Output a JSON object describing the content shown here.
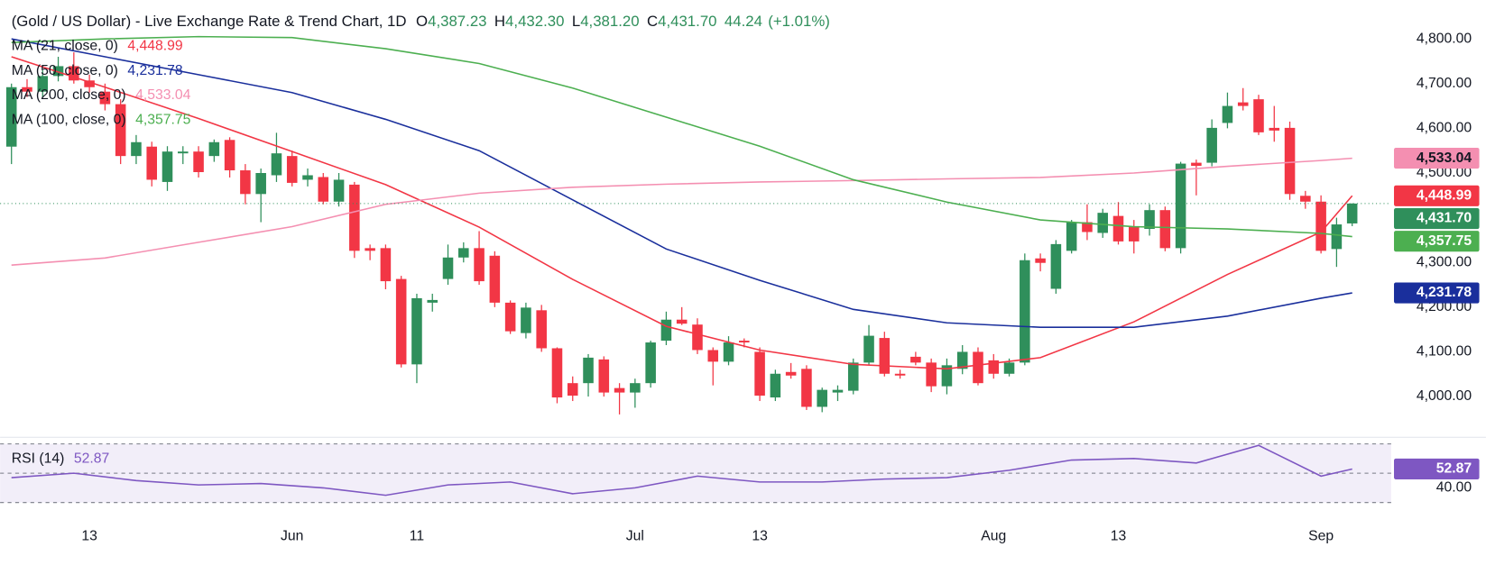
{
  "header": {
    "title": "(Gold / US Dollar) - Live Exchange Rate & Trend Chart, 1D",
    "fields": [
      {
        "label": "O",
        "value": "4,387.23"
      },
      {
        "label": "H",
        "value": "4,432.30"
      },
      {
        "label": "L",
        "value": "4,381.20"
      },
      {
        "label": "C",
        "value": "4,431.70"
      }
    ],
    "change": "44.24",
    "change_pct": "(+1.01%)",
    "color": "#2f8f5b"
  },
  "chart_data": {
    "type": "candlestick",
    "categories": [
      null,
      null,
      null,
      null,
      null,
      "13",
      null,
      null,
      null,
      null,
      null,
      null,
      null,
      null,
      null,
      null,
      null,
      null,
      "Jun",
      null,
      null,
      null,
      null,
      null,
      null,
      null,
      "11",
      null,
      null,
      null,
      null,
      null,
      null,
      null,
      null,
      null,
      null,
      null,
      null,
      null,
      "Jul",
      null,
      null,
      null,
      null,
      null,
      null,
      null,
      "13",
      null,
      null,
      null,
      null,
      null,
      null,
      null,
      null,
      null,
      null,
      null,
      null,
      null,
      null,
      "Aug",
      null,
      null,
      null,
      null,
      null,
      null,
      null,
      "13",
      null,
      null,
      null,
      null,
      null,
      null,
      null,
      null,
      null,
      null,
      null,
      null,
      "Sep",
      null,
      null
    ],
    "xlim": [
      -0.73,
      88.5
    ],
    "ylim": [
      3909,
      4887
    ],
    "yticks": [
      {
        "value": 4000,
        "label": "4,000.00"
      },
      {
        "value": 4100,
        "label": "4,100.00"
      },
      {
        "value": 4200,
        "label": "4,200.00"
      },
      {
        "value": 4300,
        "label": "4,300.00"
      },
      {
        "value": 4400,
        "label": "4,400.00"
      },
      {
        "value": 4500,
        "label": "4,500.00"
      },
      {
        "value": 4600,
        "label": "4,600.00"
      },
      {
        "value": 4700,
        "label": "4,700.00"
      },
      {
        "value": 4800,
        "label": "4,800.00"
      }
    ],
    "grid": false,
    "up_color": "#2f8f5b",
    "down_color": "#f23645",
    "candles": {
      "open": [
        4559,
        4692,
        4682,
        4717,
        4739,
        4707,
        4682,
        4654,
        4538,
        4559,
        4480,
        4544,
        4548,
        4538,
        4574,
        4506,
        4453,
        4495,
        4538,
        4485,
        4491,
        4436,
        4474,
        4332,
        4332,
        4263,
        4072,
        4210,
        4263,
        4311,
        4332,
        4315,
        4210,
        4142,
        4193,
        4108,
        4030,
        4030,
        4083,
        4019,
        4009,
        4030,
        4125,
        4172,
        4161,
        4104,
        4078,
        4125,
        4100,
        3998,
        4055,
        4062,
        3977,
        4009,
        4013,
        4076,
        4131,
        4051,
        4089,
        4076,
        4023,
        4062,
        4100,
        4081,
        4051,
        4076,
        4309,
        4241,
        4326,
        4390,
        4366,
        4404,
        4379,
        4375,
        4417,
        4332,
        4523,
        4523,
        4612,
        4658,
        4665,
        4601,
        4601,
        4449,
        4436,
        4330,
        4387.23
      ],
      "high": [
        4700,
        4710,
        4730,
        4760,
        4770,
        4720,
        4700,
        4665,
        4585,
        4570,
        4560,
        4560,
        4560,
        4575,
        4580,
        4520,
        4510,
        4590,
        4550,
        4510,
        4500,
        4500,
        4480,
        4340,
        4340,
        4270,
        4230,
        4230,
        4340,
        4345,
        4370,
        4325,
        4215,
        4210,
        4205,
        4110,
        4045,
        4095,
        4090,
        4030,
        4040,
        4125,
        4190,
        4200,
        4175,
        4110,
        4135,
        4130,
        4110,
        4060,
        4075,
        4070,
        4020,
        4025,
        4085,
        4160,
        4145,
        4060,
        4100,
        4085,
        4085,
        4115,
        4110,
        4095,
        4085,
        4320,
        4320,
        4350,
        4395,
        4430,
        4420,
        4435,
        4395,
        4430,
        4425,
        4525,
        4530,
        4620,
        4680,
        4690,
        4675,
        4650,
        4615,
        4460,
        4450,
        4400,
        4432.3
      ],
      "low": [
        4520,
        4670,
        4670,
        4705,
        4700,
        4680,
        4640,
        4520,
        4520,
        4470,
        4460,
        4520,
        4490,
        4525,
        4490,
        4430,
        4390,
        4480,
        4470,
        4470,
        4430,
        4425,
        4310,
        4305,
        4240,
        4065,
        4030,
        4190,
        4250,
        4300,
        4250,
        4200,
        4140,
        4130,
        4100,
        3985,
        3990,
        4000,
        4000,
        3960,
        3975,
        4020,
        4115,
        4160,
        4095,
        4025,
        4070,
        4110,
        3990,
        3990,
        4040,
        3970,
        3965,
        3990,
        4005,
        4070,
        4045,
        4040,
        4070,
        4010,
        4005,
        4050,
        4025,
        4040,
        4045,
        4070,
        4280,
        4230,
        4320,
        4350,
        4355,
        4340,
        4320,
        4360,
        4325,
        4320,
        4450,
        4515,
        4600,
        4640,
        4585,
        4570,
        4440,
        4420,
        4320,
        4290,
        4381.2
      ],
      "close": [
        4692,
        4682,
        4717,
        4739,
        4707,
        4692,
        4654,
        4538,
        4569,
        4485,
        4548,
        4548,
        4502,
        4569,
        4506,
        4453,
        4500,
        4544,
        4478,
        4495,
        4436,
        4485,
        4326,
        4326,
        4258,
        4072,
        4220,
        4216,
        4311,
        4332,
        4258,
        4210,
        4146,
        4199,
        4108,
        3998,
        4002,
        4087,
        4009,
        4009,
        4030,
        4121,
        4172,
        4163,
        4104,
        4078,
        4121,
        4121,
        4002,
        4051,
        4047,
        3977,
        4015,
        4015,
        4076,
        4136,
        4051,
        4047,
        4076,
        4023,
        4070,
        4100,
        4030,
        4051,
        4076,
        4305,
        4299,
        4341,
        4390,
        4368,
        4411,
        4347,
        4347,
        4417,
        4332,
        4521,
        4516,
        4601,
        4650,
        4650,
        4591,
        4595,
        4453,
        4436,
        4326,
        4385,
        4431.7
      ],
      "close_labels": [
        null,
        null,
        null,
        null,
        null,
        null,
        null,
        null,
        null,
        null,
        null,
        null,
        null,
        null,
        null,
        null,
        null,
        null,
        null,
        null,
        null,
        null,
        null,
        null,
        null,
        null,
        null,
        null,
        null,
        null,
        null,
        null,
        null,
        null,
        null,
        null,
        null,
        null,
        null,
        null,
        null,
        null,
        null,
        null,
        null,
        null,
        null,
        null,
        null,
        null,
        null,
        null,
        null,
        null,
        null,
        null,
        null,
        null,
        null,
        null,
        null,
        null,
        null,
        null,
        null,
        null,
        null,
        null,
        null,
        null,
        null,
        null,
        null,
        null,
        null,
        null,
        null,
        null,
        null,
        null,
        null,
        null,
        null,
        null,
        null,
        null,
        "4,431.70"
      ]
    },
    "series": [
      {
        "name": "MA (21, close, 0)",
        "color": "#f23645",
        "badge_text": "#ffffff",
        "x": [
          0,
          6,
          12,
          18,
          24,
          30,
          36,
          42,
          48,
          54,
          60,
          66,
          72,
          78,
          84,
          86
        ],
        "values": [
          4760,
          4692,
          4622,
          4548,
          4474,
          4379,
          4262,
          4157,
          4104,
          4072,
          4062,
          4087,
          4167,
          4273,
          4368,
          4448.99
        ],
        "value_labels": [
          null,
          null,
          null,
          null,
          null,
          null,
          null,
          null,
          null,
          null,
          null,
          null,
          null,
          null,
          null,
          "4,448.99"
        ]
      },
      {
        "name": "MA (50, close, 0)",
        "color": "#1a2f9c",
        "badge_text": "#ffffff",
        "x": [
          0,
          6,
          12,
          18,
          24,
          30,
          36,
          42,
          48,
          54,
          60,
          66,
          72,
          78,
          84,
          86
        ],
        "values": [
          4800,
          4760,
          4720,
          4680,
          4620,
          4550,
          4440,
          4330,
          4260,
          4195,
          4165,
          4155,
          4155,
          4180,
          4220,
          4231.78
        ],
        "value_labels": [
          null,
          null,
          null,
          null,
          null,
          null,
          null,
          null,
          null,
          null,
          null,
          null,
          null,
          null,
          null,
          "4,231.78"
        ]
      },
      {
        "name": "MA (200, close, 0)",
        "color": "#f48fb1",
        "badge_text": "#131722",
        "x": [
          0,
          6,
          12,
          18,
          24,
          30,
          36,
          42,
          48,
          54,
          60,
          66,
          72,
          78,
          84,
          86
        ],
        "values": [
          4294,
          4310,
          4345,
          4380,
          4430,
          4455,
          4468,
          4475,
          4480,
          4483,
          4487,
          4490,
          4500,
          4515,
          4528,
          4533.04
        ],
        "value_labels": [
          null,
          null,
          null,
          null,
          null,
          null,
          null,
          null,
          null,
          null,
          null,
          null,
          null,
          null,
          null,
          "4,533.04"
        ]
      },
      {
        "name": "MA (100, close, 0)",
        "color": "#4caf50",
        "badge_text": "#ffffff",
        "x": [
          0,
          6,
          12,
          18,
          24,
          30,
          36,
          42,
          48,
          54,
          60,
          66,
          72,
          78,
          84,
          86
        ],
        "values": [
          4792,
          4800,
          4805,
          4803,
          4778,
          4745,
          4690,
          4625,
          4560,
          4485,
          4435,
          4395,
          4380,
          4375,
          4365,
          4357.75
        ],
        "value_labels": [
          null,
          null,
          null,
          null,
          null,
          null,
          null,
          null,
          null,
          null,
          null,
          null,
          null,
          null,
          null,
          "4,357.75"
        ]
      }
    ],
    "rsi": {
      "name": "RSI (14)",
      "color": "#7e57c2",
      "ylim": [
        24.2,
        73.9
      ],
      "yticks": [
        {
          "value": 40,
          "label": "40.00"
        }
      ],
      "bands": [
        30,
        50,
        70
      ],
      "x": [
        0,
        4,
        8,
        12,
        16,
        20,
        24,
        28,
        32,
        36,
        40,
        44,
        48,
        52,
        56,
        60,
        64,
        68,
        72,
        76,
        80,
        84,
        86
      ],
      "values": [
        47,
        50,
        45,
        42,
        43,
        40,
        35,
        42,
        44,
        36,
        40,
        48,
        44,
        44,
        46,
        47,
        52,
        59,
        60,
        57,
        69,
        48,
        52.87
      ],
      "value_labels": [
        null,
        null,
        null,
        null,
        null,
        null,
        null,
        null,
        null,
        null,
        null,
        null,
        null,
        null,
        null,
        null,
        null,
        null,
        null,
        null,
        null,
        null,
        "52.87"
      ]
    }
  }
}
